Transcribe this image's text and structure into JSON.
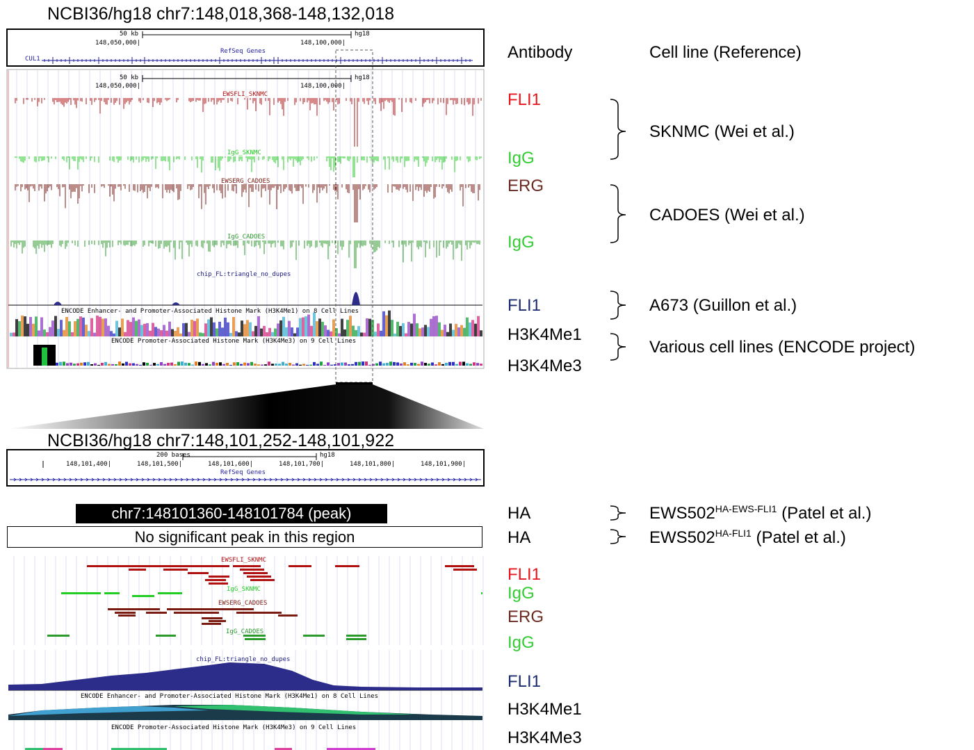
{
  "top_panel": {
    "title": "NCBI36/hg18 chr7:148,018,368-148,132,018",
    "scale_label": "50 kb",
    "assembly": "hg18",
    "coord_left": "148,050,000|",
    "coord_right": "148,100,000|",
    "gene_track": "RefSeq Genes",
    "gene_name": "CUL1",
    "tracks": {
      "ewsfli": "EWSFLI_SKNMC",
      "igg_sknmc": "IgG_SKNMC",
      "ewserg": "EWSERG_CADOES",
      "igg_cadoes": "IgG_CADOES",
      "chip": "chip_FL:triangle_no_dupes",
      "h3k4me1": "ENCODE Enhancer- and Promoter-Associated Histone Mark (H3K4Me1) on 8 Cell Lines",
      "h3k4me3": "ENCODE Promoter-Associated Histone Mark (H3K4Me3) on 9 Cell Lines"
    }
  },
  "headers": {
    "antibody": "Antibody",
    "cell_line": "Cell line (Reference)"
  },
  "top_labels": {
    "fli1_red": "FLI1",
    "igg1": "IgG",
    "erg": "ERG",
    "igg2": "IgG",
    "fli1_blue": "FLI1",
    "h3k4me1": "H3K4Me1",
    "h3k4me3": "H3K4Me3"
  },
  "cell_lines": {
    "sknmc": "SKNMC  (Wei et al.)",
    "cadoes": "CADOES (Wei et al.)",
    "a673": "A673 (Guillon et al.)",
    "various": "Various cell lines (ENCODE project)"
  },
  "zoom_panel": {
    "title": "NCBI36/hg18 chr7:148,101,252-148,101,922",
    "scale_label": "200 bases",
    "assembly": "hg18",
    "coords": [
      "148,101,400|",
      "148,101,500|",
      "148,101,600|",
      "148,101,700|",
      "148,101,800|",
      "148,101,900|"
    ],
    "gene_track": "RefSeq Genes",
    "tracks": {
      "ewsfli": "EWSFLI_SKNMC",
      "igg_sknmc": "IgG_SKNMC",
      "ewserg": "EWSERG_CADOES",
      "igg_cadoes": "IgG_CADOES",
      "chip": "chip_FL:triangle_no_dupes",
      "h3k4me1": "ENCODE Enhancer- and Promoter-Associated Histone Mark (H3K4Me1) on 8 Cell Lines",
      "h3k4me3": "ENCODE Promoter-Associated Histone Mark (H3K4Me3) on 9 Cell Lines"
    }
  },
  "peaks": {
    "peak_box": "chr7:148101360-148101784 (peak)",
    "no_peak_box": "No significant peak in this region",
    "ha1": "HA",
    "ha2": "HA",
    "ews502_a": "EWS502",
    "ews502_a_sup": "HA-EWS-FLI1",
    "ews502_a_ref": " (Patel et al.)",
    "ews502_b": "EWS502",
    "ews502_b_sup": "HA-FLI1",
    "ews502_b_ref": " (Patel et al.)"
  },
  "bottom_labels": {
    "fli1_red": "FLI1",
    "igg1": "IgG",
    "erg": "ERG",
    "igg2": "IgG",
    "fli1_blue": "FLI1",
    "h3k4me1": "H3K4Me1",
    "h3k4me3": "H3K4Me3"
  },
  "colors": {
    "fli1_red": "#e8141c",
    "igg_green": "#33cc33",
    "erg_brown": "#6b2a20",
    "fli1_blue": "#1a2a6e",
    "ews_track": "#b01010",
    "igg_sknmc_track": "#22cc22",
    "ewserg_track": "#7a1a10",
    "igg_cadoes_track": "#2a9a2a",
    "chip_track": "#2c2c8a"
  }
}
